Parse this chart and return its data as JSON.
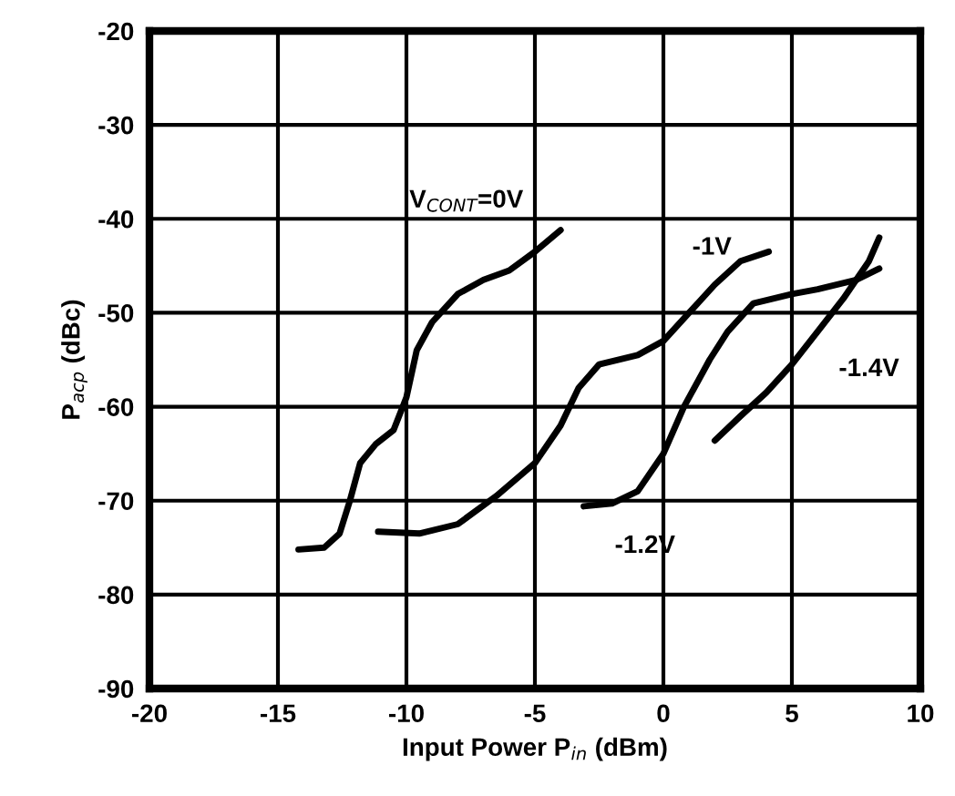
{
  "chart_data": {
    "type": "line",
    "xlabel": "Input Power P$_{in}$ (dBm)",
    "ylabel": "P$_{acp}$ (dBc)",
    "xlim": [
      -20,
      10
    ],
    "xticks": [
      -20,
      -15,
      -10,
      -5,
      0,
      5,
      10
    ],
    "ylim": [
      -90,
      -20
    ],
    "yticks": [
      -90,
      -80,
      -70,
      -60,
      -50,
      -40,
      -30,
      -20
    ],
    "grid": true,
    "line_style": "solid",
    "series": [
      {
        "name": "V$_{CONT}$=0V",
        "color": "#000000",
        "x": [
          -14.2,
          -13.2,
          -12.6,
          -12.2,
          -11.8,
          -11.2,
          -10.5,
          -10,
          -9.6,
          -9,
          -8,
          -7,
          -6,
          -5,
          -4
        ],
        "values": [
          -75.2,
          -75,
          -73.5,
          -70,
          -66,
          -64,
          -62.5,
          -59,
          -54,
          -51,
          -48,
          -46.5,
          -45.5,
          -43.5,
          -41.2
        ]
      },
      {
        "name": "-1V",
        "color": "#000000",
        "x": [
          -11.1,
          -9.5,
          -8,
          -6.5,
          -5,
          -4,
          -3.3,
          -2.5,
          -1,
          0,
          1,
          2,
          3,
          4.1
        ],
        "values": [
          -73.3,
          -73.5,
          -72.5,
          -69.5,
          -66,
          -62,
          -58,
          -55.5,
          -54.5,
          -53,
          -50,
          -47,
          -44.5,
          -43.5
        ]
      },
      {
        "name": "-1.2V",
        "color": "#000000",
        "x": [
          -3.1,
          -2,
          -1,
          0,
          0.8,
          1.8,
          2.5,
          3.5,
          5,
          6,
          7.5,
          8.4
        ],
        "values": [
          -70.6,
          -70.3,
          -69,
          -65,
          -60,
          -55,
          -52,
          -49,
          -48,
          -47.5,
          -46.5,
          -45.3
        ]
      },
      {
        "name": "-1.4V",
        "color": "#000000",
        "x": [
          2,
          3,
          4,
          5,
          6,
          7,
          8,
          8.4
        ],
        "values": [
          -63.6,
          -61,
          -58.5,
          -55.5,
          -52,
          -48.5,
          -44.5,
          -42
        ]
      }
    ]
  }
}
